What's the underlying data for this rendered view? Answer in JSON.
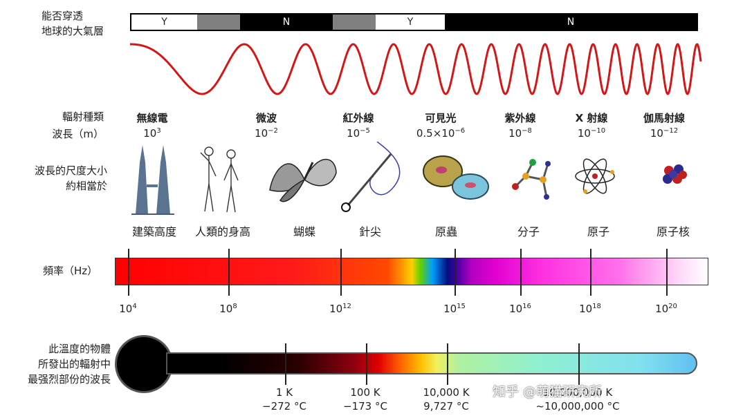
{
  "labels": {
    "atmosphere": [
      "能否穿透",
      "地球的大氣層"
    ],
    "radiation_type": "輻射種類",
    "wavelength": "波長（m）",
    "size_compare": [
      "波長的尺度大小",
      "約相當於"
    ],
    "frequency": "頻率（Hz）",
    "temperature": [
      "此溫度的物體",
      "所發出的輻射中",
      "最强烈部份的波長"
    ]
  },
  "atmosphere_bar": {
    "segments": [
      {
        "label": "Y",
        "fill": "#ffffff"
      },
      {
        "label": "",
        "fill": "#808080"
      },
      {
        "label": "N",
        "fill": "#000000"
      },
      {
        "label": "",
        "fill": "#808080"
      },
      {
        "label": "Y",
        "fill": "#ffffff"
      },
      {
        "label": "N",
        "fill": "#000000"
      }
    ]
  },
  "bands": [
    {
      "name": "無線電",
      "wl_base": "10",
      "wl_exp": "3",
      "object": "建築高度",
      "icon": "tower-icon"
    },
    {
      "name": "微波",
      "wl_base": "10",
      "wl_exp": "−2",
      "object": "人類的身高",
      "icon": "humans-icon"
    },
    {
      "name": "紅外線",
      "wl_base": "10",
      "wl_exp": "−5",
      "object": "蝴蝶",
      "icon": "butterfly-icon"
    },
    {
      "name": "可見光",
      "wl_base": "0.5×10",
      "wl_exp": "−6",
      "object": "針尖",
      "icon": "needle-icon"
    },
    {
      "name": "紫外線",
      "wl_base": "10",
      "wl_exp": "−8",
      "object": "原蟲",
      "icon": "protozoa-icon"
    },
    {
      "name": "X 射線",
      "wl_base": "10",
      "wl_exp": "−10",
      "object": "分子",
      "icon": "molecule-icon"
    },
    {
      "name": "伽馬射線",
      "wl_base": "10",
      "wl_exp": "−12",
      "object": "原子",
      "icon": "atom-icon"
    }
  ],
  "extra_object": {
    "object": "原子核",
    "icon": "nucleus-icon"
  },
  "frequency_ticks": [
    {
      "base": "10",
      "exp": "4"
    },
    {
      "base": "10",
      "exp": "8"
    },
    {
      "base": "10",
      "exp": "12"
    },
    {
      "base": "10",
      "exp": "15"
    },
    {
      "base": "10",
      "exp": "16"
    },
    {
      "base": "10",
      "exp": "18"
    },
    {
      "base": "10",
      "exp": "20"
    }
  ],
  "temperatures": [
    {
      "k": "1 K",
      "c": "−272 °C"
    },
    {
      "k": "100 K",
      "c": "−173 °C"
    },
    {
      "k": "10,000 K",
      "c": "9,727 °C"
    },
    {
      "k": "10,000,000 K",
      "c": "~10,000,000 °C"
    }
  ],
  "watermark": "知乎 @萌猫研究所"
}
